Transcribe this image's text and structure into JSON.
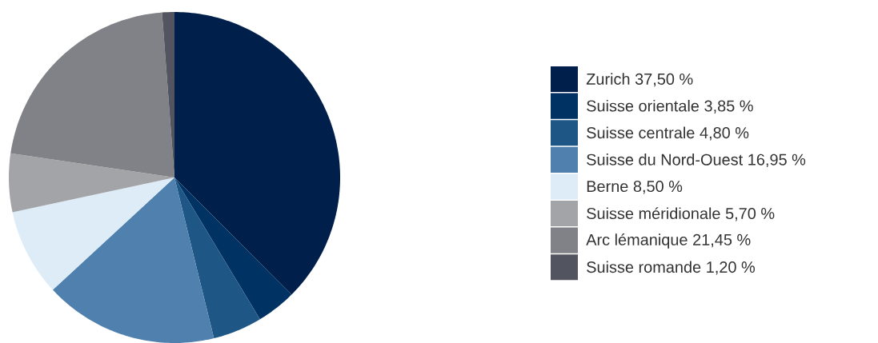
{
  "chart_data": {
    "type": "pie",
    "categories": [
      "Zurich",
      "Suisse orientale",
      "Suisse centrale",
      "Suisse du Nord-Ouest",
      "Berne",
      "Suisse méridionale",
      "Arc lémanique",
      "Suisse romande"
    ],
    "values": [
      37.5,
      3.85,
      4.8,
      16.95,
      8.5,
      5.7,
      21.45,
      1.2
    ],
    "value_labels": [
      "37,50 %",
      "3,85 %",
      "4,80 %",
      "16,95 %",
      "8,50 %",
      "5,70 %",
      "21,45 %",
      "1,20 %"
    ],
    "colors": [
      "#001f4b",
      "#003263",
      "#1e5785",
      "#5080ae",
      "#ddecf6",
      "#a3a4a8",
      "#818287",
      "#52555f"
    ],
    "legend": "right"
  }
}
